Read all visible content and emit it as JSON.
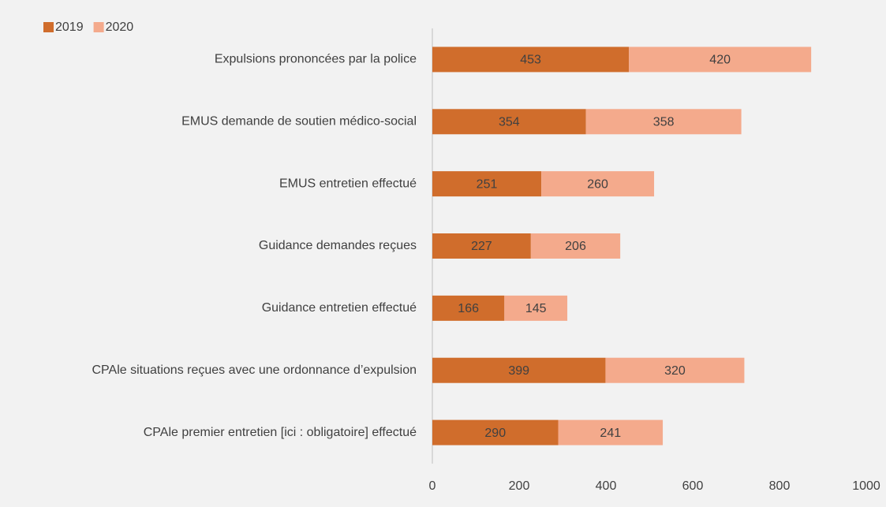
{
  "chart_data": {
    "type": "stacked_bar_horizontal",
    "categories": [
      "Expulsions prononcées par la police",
      "EMUS demande de soutien médico-social",
      "EMUS entretien effectué",
      "Guidance demandes reçues",
      "Guidance entretien effectué",
      "CPAle situations reçues avec une ordonnance d’expulsion",
      "CPAle premier entretien [ici : obligatoire] effectué"
    ],
    "series": [
      {
        "name": "2019",
        "color": "#d06d2c",
        "values": [
          453,
          354,
          251,
          227,
          166,
          399,
          290
        ]
      },
      {
        "name": "2020",
        "color": "#f4aa8c",
        "values": [
          420,
          358,
          260,
          206,
          145,
          320,
          241
        ]
      }
    ],
    "xlim": [
      0,
      1000
    ],
    "xticks": [
      0,
      200,
      400,
      600,
      800,
      1000
    ],
    "grid": false,
    "legend": "top-left"
  }
}
